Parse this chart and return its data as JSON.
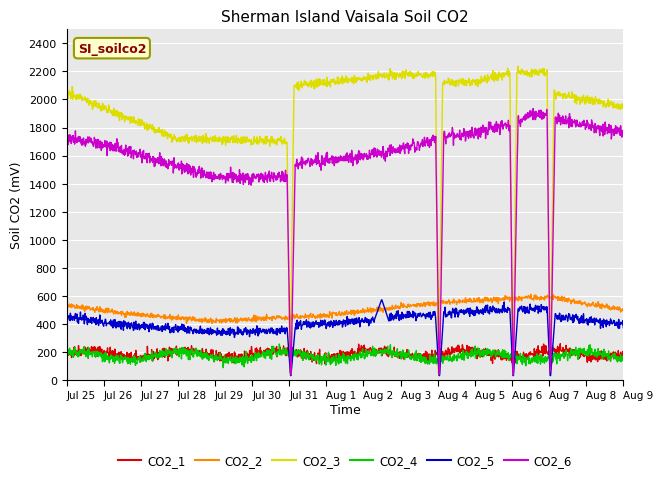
{
  "title": "Sherman Island Vaisala Soil CO2",
  "xlabel": "Time",
  "ylabel": "Soil CO2 (mV)",
  "ylim": [
    0,
    2500
  ],
  "yticks": [
    0,
    200,
    400,
    600,
    800,
    1000,
    1200,
    1400,
    1600,
    1800,
    2000,
    2200,
    2400
  ],
  "bg_color": "#e8e8e8",
  "legend_label": "SI_soilco2",
  "series_colors": {
    "CO2_1": "#dd0000",
    "CO2_2": "#ff8800",
    "CO2_3": "#dddd00",
    "CO2_4": "#00cc00",
    "CO2_5": "#0000cc",
    "CO2_6": "#cc00cc"
  },
  "xtick_labels": [
    "Jul 25",
    "Jul 26",
    "Jul 27",
    "Jul 28",
    "Jul 29",
    "Jul 30",
    "Jul 31",
    "Aug 1",
    "Aug 2",
    "Aug 3",
    "Aug 4",
    "Aug 5",
    "Aug 6",
    "Aug 7",
    "Aug 8",
    "Aug 9"
  ],
  "num_points": 1440,
  "days": 15
}
